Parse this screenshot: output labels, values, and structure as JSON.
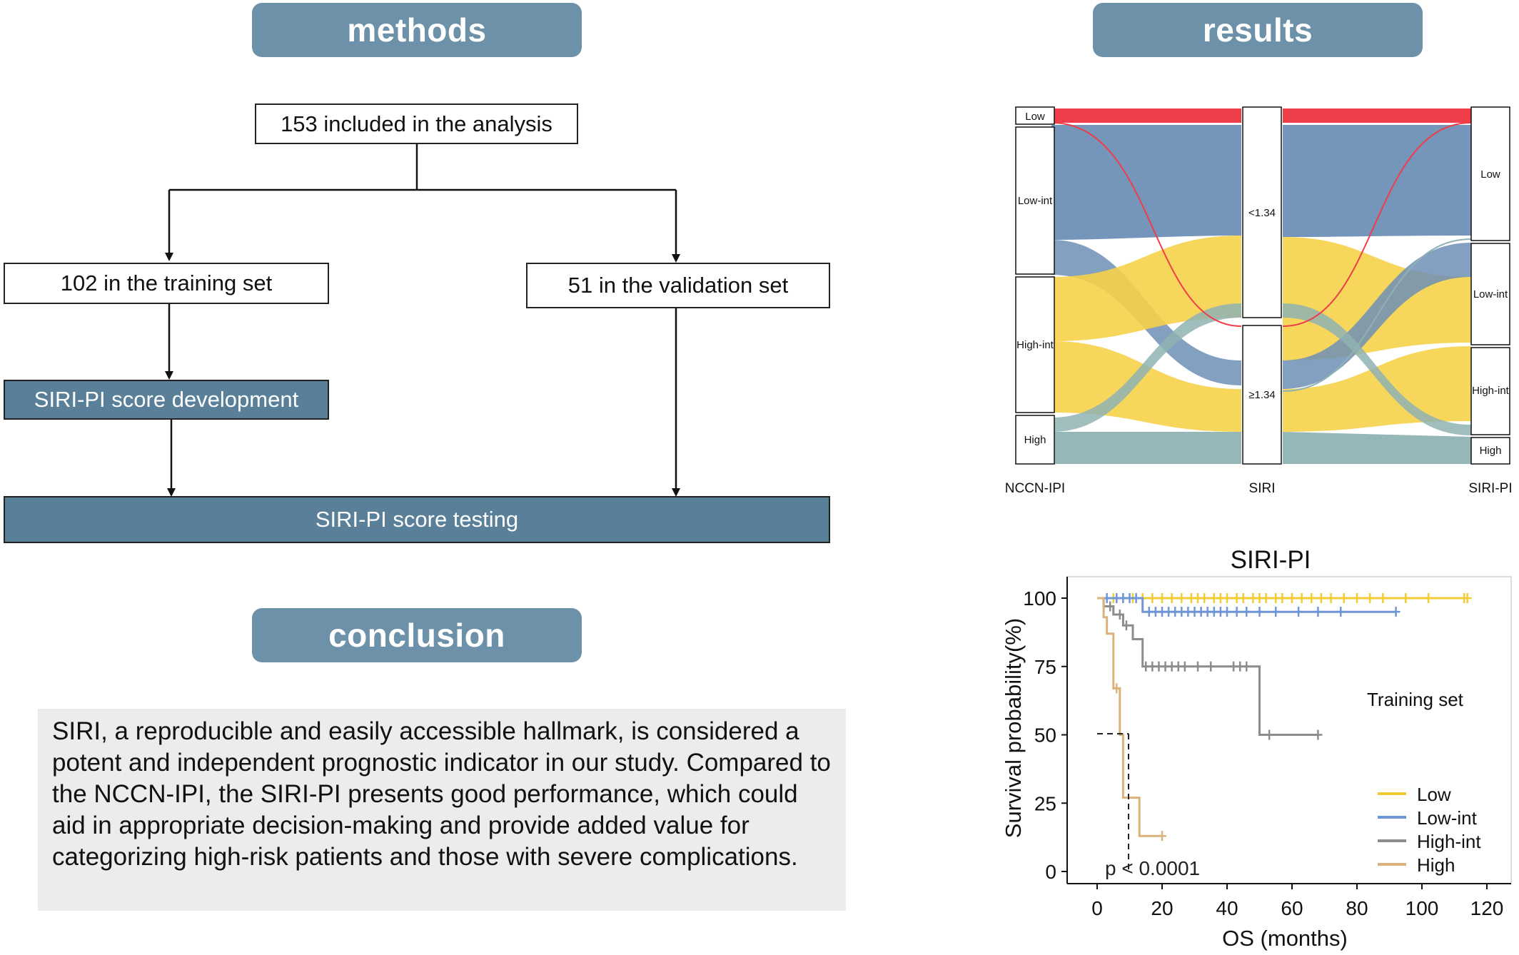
{
  "headers": {
    "methods": "methods",
    "results": "results",
    "conclusion": "conclusion"
  },
  "flowchart": {
    "included": "153 included in the analysis",
    "training": "102 in the training set",
    "validation": "51 in the validation set",
    "development": "SIRI-PI score development",
    "testing": "SIRI-PI score testing"
  },
  "conclusion_text": "SIRI, a reproducible and easily accessible hallmark, is considered a potent and independent prognostic indicator in our study. Compared to the NCCN-IPI, the SIRI-PI presents good performance, which could aid in appropriate decision-making and provide added value for categorizing high-risk patients and those with severe complications.",
  "colors": {
    "header": "#6d91a8",
    "box_fill": "#5a7f99",
    "low": "#ef3d4a",
    "low_int": "#6f8fb6",
    "high_int": "#f6d24a",
    "high": "#8fb3b3",
    "km_low": "#f2cc35",
    "km_low_int": "#6f96d6",
    "km_high_int": "#8c8c8c",
    "km_high": "#d9b27c"
  },
  "sankey": {
    "axes": [
      "NCCN-IPI",
      "SIRI",
      "SIRI-PI"
    ],
    "left_nodes": [
      "Low",
      "Low-int",
      "High-int",
      "High"
    ],
    "mid_nodes": [
      "<1.34",
      "≥1.34"
    ],
    "right_nodes": [
      "Low",
      "Low-int",
      "High-int",
      "High"
    ]
  },
  "chart_data": {
    "type": "line",
    "title": "SIRI-PI",
    "xlabel": "OS (months)",
    "ylabel": "Survival probability(%)",
    "xlim": [
      0,
      120
    ],
    "ylim": [
      0,
      100
    ],
    "xticks": [
      "0",
      "20",
      "40",
      "60",
      "80",
      "100",
      "120"
    ],
    "yticks": [
      "0",
      "25",
      "50",
      "75",
      "100"
    ],
    "annotation_set": "Training set",
    "pvalue": "p < 0.0001",
    "legend_position": "bottom-right",
    "series": [
      {
        "name": "Low",
        "color": "#f2cc35",
        "steps": [
          [
            0,
            100
          ],
          [
            114,
            100
          ]
        ],
        "censors": [
          5,
          8,
          11,
          14,
          17,
          20,
          23,
          26,
          29,
          31,
          33,
          36,
          38,
          40,
          43,
          45,
          48,
          50,
          52,
          55,
          57,
          60,
          63,
          66,
          69,
          72,
          76,
          80,
          84,
          88,
          95,
          102,
          113,
          114
        ]
      },
      {
        "name": "Low-int",
        "color": "#6f96d6",
        "steps": [
          [
            0,
            100
          ],
          [
            14,
            100
          ],
          [
            14,
            95
          ],
          [
            92,
            95
          ]
        ],
        "censors": [
          3,
          6,
          8,
          10,
          12,
          16,
          18,
          20,
          22,
          24,
          26,
          28,
          30,
          32,
          34,
          36,
          38,
          40,
          43,
          46,
          50,
          55,
          62,
          68,
          75,
          92
        ]
      },
      {
        "name": "High-int",
        "color": "#8c8c8c",
        "steps": [
          [
            0,
            100
          ],
          [
            2,
            100
          ],
          [
            2,
            97
          ],
          [
            5,
            97
          ],
          [
            5,
            94
          ],
          [
            8,
            94
          ],
          [
            8,
            90
          ],
          [
            11,
            90
          ],
          [
            11,
            85
          ],
          [
            14,
            85
          ],
          [
            14,
            75
          ],
          [
            50,
            75
          ],
          [
            50,
            50
          ],
          [
            68,
            50
          ]
        ],
        "censors": [
          4,
          7,
          9,
          15,
          17,
          19,
          21,
          23,
          25,
          27,
          31,
          35,
          42,
          44,
          46,
          53,
          68
        ]
      },
      {
        "name": "High",
        "color": "#d9b27c",
        "steps": [
          [
            0,
            100
          ],
          [
            2,
            100
          ],
          [
            2,
            93
          ],
          [
            3,
            93
          ],
          [
            3,
            87
          ],
          [
            5,
            87
          ],
          [
            5,
            67
          ],
          [
            7,
            67
          ],
          [
            7,
            50
          ],
          [
            8,
            50
          ],
          [
            8,
            27
          ],
          [
            13,
            27
          ],
          [
            13,
            13
          ],
          [
            20,
            13
          ]
        ],
        "censors": [
          6,
          20
        ]
      }
    ]
  }
}
